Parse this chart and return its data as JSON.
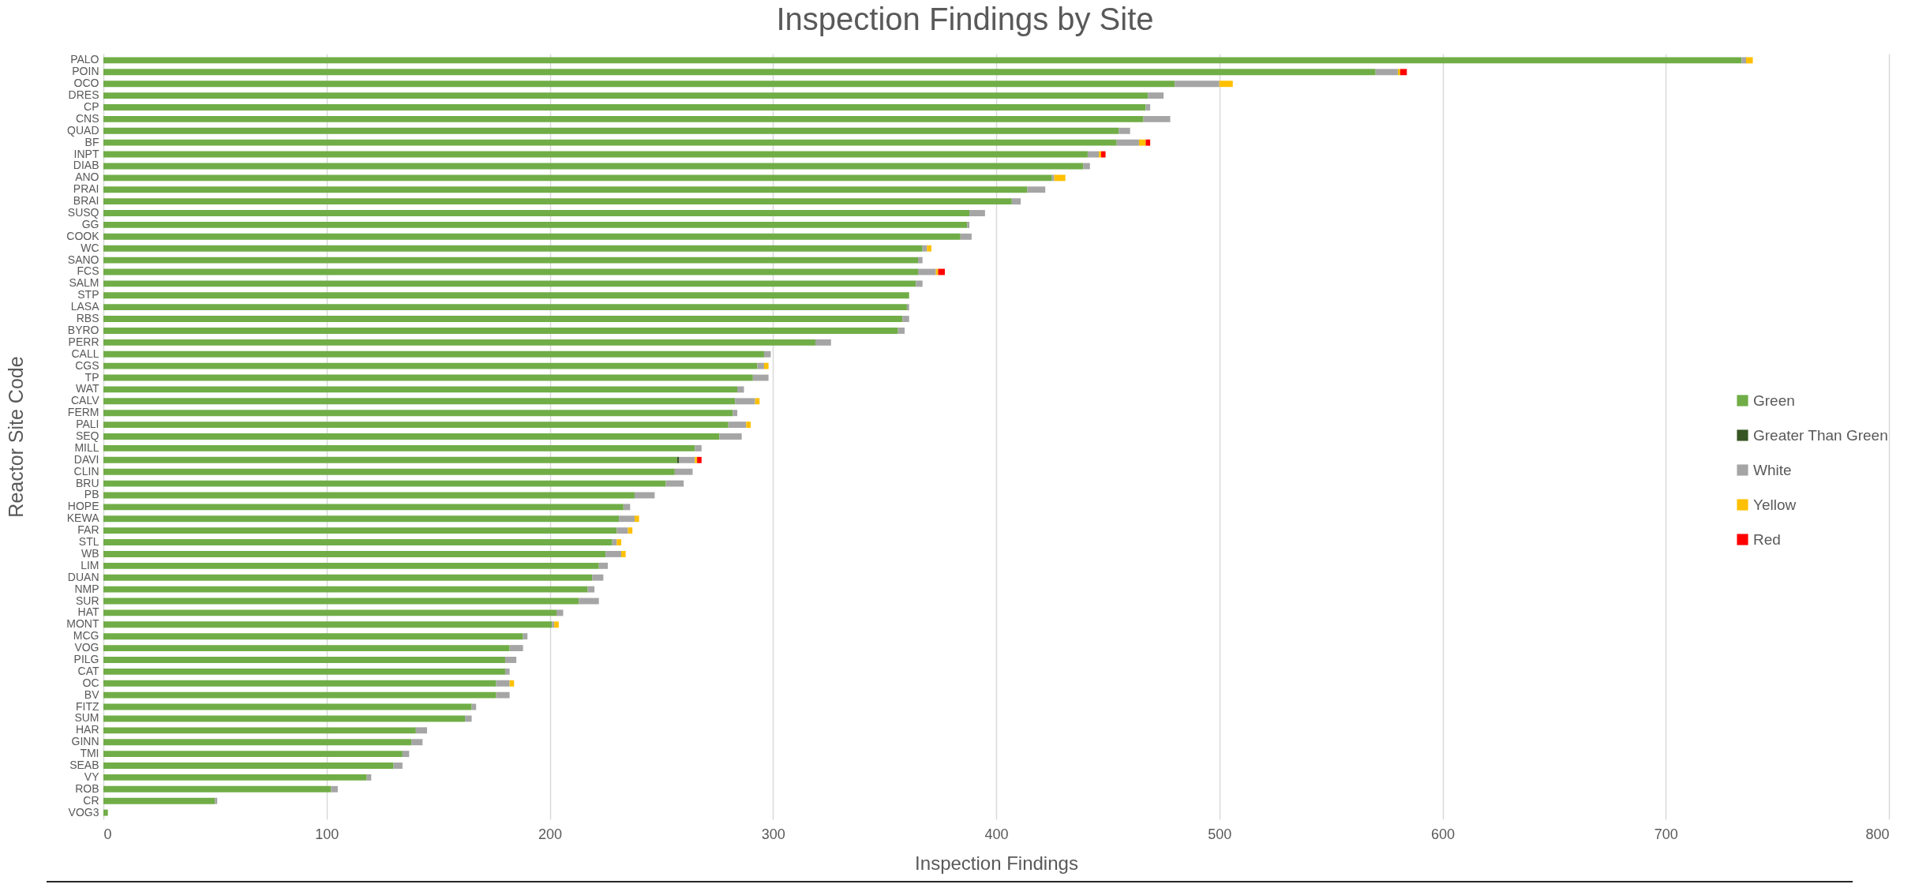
{
  "chart_data": {
    "type": "bar",
    "orientation": "horizontal",
    "stacked": true,
    "title": "Inspection Findings by Site",
    "xlabel": "Inspection Findings",
    "ylabel": "Reactor Site Code",
    "categories": [
      "PALO",
      "POIN",
      "OCO",
      "DRES",
      "CP",
      "CNS",
      "QUAD",
      "BF",
      "INPT",
      "DIAB",
      "ANO",
      "PRAI",
      "BRAI",
      "SUSQ",
      "GG",
      "COOK",
      "WC",
      "SANO",
      "FCS",
      "SALM",
      "STP",
      "LASA",
      "RBS",
      "BYRO",
      "PERR",
      "CALL",
      "CGS",
      "TP",
      "WAT",
      "CALV",
      "FERM",
      "PALI",
      "SEQ",
      "MILL",
      "DAVI",
      "CLIN",
      "BRU",
      "PB",
      "HOPE",
      "KEWA",
      "FAR",
      "STL",
      "WB",
      "LIM",
      "DUAN",
      "NMP",
      "SUR",
      "HAT",
      "MONT",
      "MCG",
      "VOG",
      "PILG",
      "CAT",
      "OC",
      "BV",
      "FITZ",
      "SUM",
      "HAR",
      "GINN",
      "TMI",
      "SEAB",
      "VY",
      "ROB",
      "CR",
      "VOG3"
    ],
    "series": [
      {
        "name": "Green",
        "color": "#70ad47",
        "values": [
          734,
          570,
          480,
          468,
          467,
          466,
          455,
          454,
          441,
          439,
          425,
          414,
          407,
          388,
          387,
          384,
          367,
          365,
          365,
          364,
          361,
          360,
          358,
          356,
          319,
          296,
          293,
          291,
          284,
          283,
          282,
          280,
          276,
          265,
          257,
          256,
          252,
          238,
          233,
          231,
          230,
          228,
          225,
          222,
          219,
          217,
          213,
          203,
          201,
          188,
          182,
          180,
          180,
          176,
          176,
          165,
          162,
          140,
          138,
          134,
          130,
          118,
          102,
          50,
          2
        ]
      },
      {
        "name": "Greater Than Green",
        "color": "#375623",
        "values": [
          null,
          null,
          null,
          null,
          null,
          null,
          null,
          null,
          null,
          null,
          null,
          null,
          null,
          null,
          null,
          null,
          null,
          null,
          null,
          null,
          null,
          null,
          null,
          null,
          null,
          null,
          null,
          null,
          null,
          null,
          null,
          null,
          null,
          null,
          1,
          null,
          null,
          null,
          null,
          null,
          null,
          null,
          null,
          null,
          null,
          null,
          null,
          null,
          null,
          null,
          null,
          null,
          null,
          null,
          null,
          null,
          null,
          null,
          null,
          null,
          null,
          null,
          null,
          null,
          null
        ]
      },
      {
        "name": "White",
        "color": "#a5a5a5",
        "values": [
          2,
          10,
          20,
          7,
          2,
          12,
          5,
          10,
          5,
          3,
          1,
          8,
          4,
          7,
          1,
          5,
          2,
          2,
          8,
          3,
          null,
          1,
          3,
          3,
          7,
          3,
          3,
          7,
          3,
          9,
          2,
          8,
          10,
          3,
          7,
          8,
          8,
          9,
          3,
          7,
          5,
          2,
          7,
          4,
          5,
          3,
          9,
          3,
          1,
          2,
          6,
          5,
          2,
          6,
          6,
          2,
          3,
          5,
          5,
          3,
          4,
          2,
          3,
          1,
          null
        ]
      },
      {
        "name": "Yellow",
        "color": "#ffc000",
        "values": [
          3,
          1,
          6,
          null,
          null,
          null,
          null,
          3,
          1,
          null,
          5,
          null,
          null,
          null,
          null,
          null,
          2,
          null,
          1,
          null,
          null,
          null,
          null,
          null,
          null,
          null,
          2,
          null,
          null,
          2,
          null,
          2,
          null,
          null,
          1,
          null,
          null,
          null,
          null,
          2,
          2,
          2,
          2,
          null,
          null,
          null,
          null,
          null,
          2,
          null,
          null,
          null,
          null,
          2,
          null,
          null,
          null,
          null,
          null,
          null,
          null,
          null,
          null,
          null,
          null
        ]
      },
      {
        "name": "Red",
        "color": "#ff0000",
        "values": [
          null,
          3,
          null,
          null,
          null,
          null,
          null,
          2,
          2,
          null,
          null,
          null,
          null,
          null,
          null,
          null,
          null,
          null,
          3,
          null,
          null,
          null,
          null,
          null,
          null,
          null,
          null,
          null,
          null,
          null,
          null,
          null,
          null,
          null,
          2,
          null,
          null,
          null,
          null,
          null,
          null,
          null,
          null,
          null,
          null,
          null,
          null,
          null,
          null,
          null,
          null,
          null,
          null,
          null,
          null,
          null,
          null,
          null,
          null,
          null,
          null,
          null,
          null,
          null,
          null
        ]
      }
    ],
    "xlim": [
      0,
      800
    ],
    "xticks": [
      0,
      100,
      200,
      300,
      400,
      500,
      600,
      700,
      800
    ],
    "grid": "x",
    "legend": "right"
  }
}
